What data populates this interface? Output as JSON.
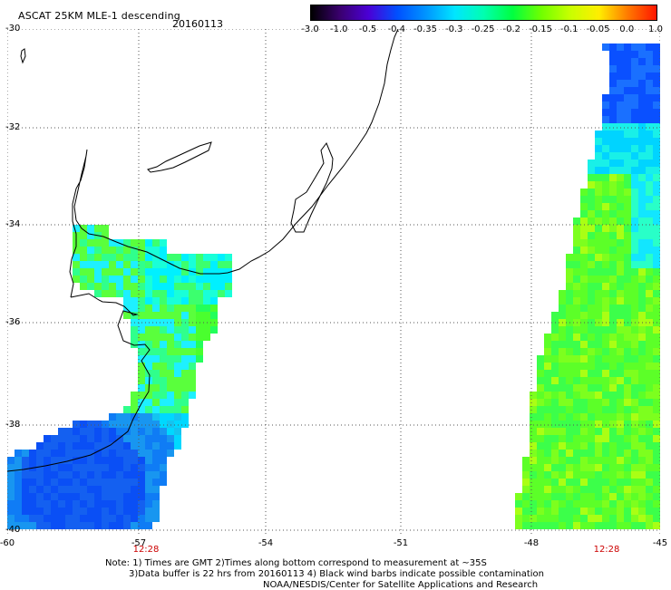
{
  "header": {
    "title": "ASCAT 25KM MLE-1 descending",
    "date": "20160113"
  },
  "colorbar": {
    "ticks": [
      "-3.0",
      "-1.0",
      "-0.5",
      "-0.4",
      "-0.35",
      "-0.3",
      "-0.25",
      "-0.2",
      "-0.15",
      "-0.1",
      "-0.05",
      "0.0",
      "1.0"
    ],
    "colors": [
      "#000000",
      "#3a006e",
      "#4b00d6",
      "#0050ff",
      "#0095ff",
      "#00e6ff",
      "#00ffb0",
      "#00ff40",
      "#70ff00",
      "#c8ff00",
      "#ffee00",
      "#ff7a00",
      "#ff1500"
    ]
  },
  "axes": {
    "lat_labels": [
      "-30",
      "-32",
      "-34",
      "-36",
      "-38",
      "-40"
    ],
    "lon_labels": [
      "-60",
      "-57",
      "-54",
      "-51",
      "-48",
      "-45"
    ],
    "time_labels": [
      "12:28",
      "12:28"
    ]
  },
  "notes": [
    "Note: 1) Times are GMT 2)Times along bottom correspond to measurement at ~35S",
    "3)Data buffer is 22 hrs from 20160113 4) Black wind barbs indicate possible contamination",
    "NOAA/NESDIS/Center for Satellite Applications and Research"
  ]
}
